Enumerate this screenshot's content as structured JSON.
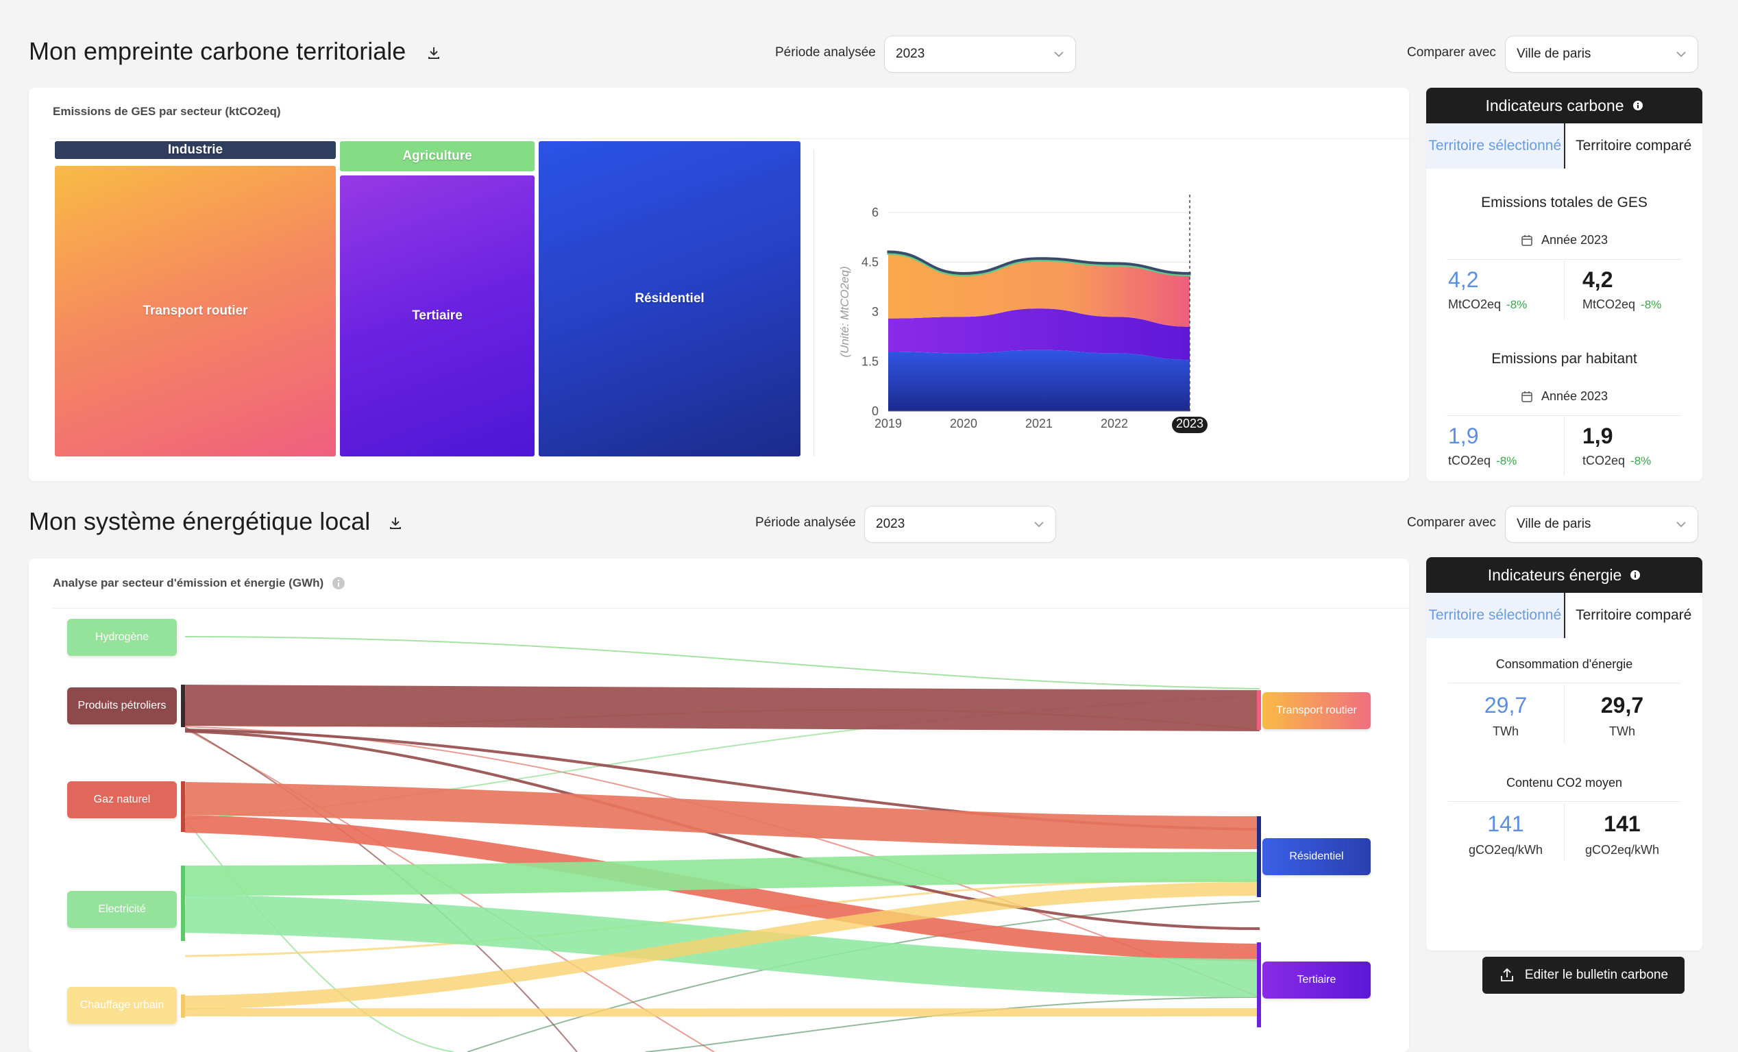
{
  "carbon_section": {
    "title": "Mon empreinte carbone territoriale",
    "period_label": "Période analysée",
    "period_value": "2023",
    "compare_label": "Comparer avec",
    "compare_value": "Ville de paris",
    "card_title": "Emissions de GES par secteur (ktCO2eq)",
    "treemap": [
      {
        "name": "Industrie",
        "label": "Industrie"
      },
      {
        "name": "Transport routier",
        "label": "Transport routier"
      },
      {
        "name": "Agriculture",
        "label": "Agriculture"
      },
      {
        "name": "Tertiaire",
        "label": "Tertiaire"
      },
      {
        "name": "Résidentiel",
        "label": "Résidentiel"
      }
    ]
  },
  "chart_data": {
    "type": "area",
    "title": "",
    "xlabel": "",
    "ylabel": "(Unité: MtCO2eq)",
    "x": [
      "2019",
      "2020",
      "2021",
      "2022",
      "2023"
    ],
    "highlight_x": "2023",
    "y_ticks": [
      "0",
      "1.5",
      "3",
      "4.5",
      "6"
    ],
    "ylim": [
      0,
      6
    ],
    "stacked": true,
    "series": [
      {
        "name": "Résidentiel",
        "color": "#2f4fe0",
        "values": [
          1.8,
          1.75,
          1.85,
          1.75,
          1.55
        ]
      },
      {
        "name": "Tertiaire",
        "color": "#8a2be8",
        "values": [
          1.0,
          1.1,
          1.25,
          1.1,
          1.0
        ]
      },
      {
        "name": "Transport routier",
        "color": "#f79a5a",
        "values": [
          1.95,
          1.25,
          1.45,
          1.55,
          1.55
        ]
      },
      {
        "name": "Agriculture",
        "color": "#63c98a",
        "values": [
          0.05,
          0.05,
          0.05,
          0.05,
          0.05
        ]
      },
      {
        "name": "Industrie",
        "color": "#3a4a6a",
        "values": [
          0.02,
          0.02,
          0.02,
          0.02,
          0.02
        ]
      }
    ]
  },
  "carbon_indicators": {
    "header": "Indicateurs carbone",
    "tab_selected": "Territoire sélectionné",
    "tab_compared": "Territoire comparé",
    "total": {
      "title": "Emissions totales de GES",
      "year": "Année 2023",
      "left_value": "4,2",
      "left_unit": "MtCO2eq",
      "left_pct": "-8%",
      "right_value": "4,2",
      "right_unit": "MtCO2eq",
      "right_pct": "-8%"
    },
    "per_capita": {
      "title": "Emissions par habitant",
      "year": "Année 2023",
      "left_value": "1,9",
      "left_unit": "tCO2eq",
      "left_pct": "-8%",
      "right_value": "1,9",
      "right_unit": "tCO2eq",
      "right_pct": "-8%"
    }
  },
  "energy_section": {
    "title": "Mon système énergétique local",
    "period_label": "Période analysée",
    "period_value": "2023",
    "compare_label": "Comparer avec",
    "compare_value": "Ville de paris",
    "card_title": "Analyse par secteur d'émission et énergie (GWh)",
    "sankey_sources": [
      "Hydrogène",
      "Produits pétroliers",
      "Gaz naturel",
      "Electricité",
      "Chauffage urbain"
    ],
    "sankey_targets": [
      "Transport routier",
      "Résidentiel",
      "Tertiaire"
    ]
  },
  "energy_indicators": {
    "header": "Indicateurs énergie",
    "tab_selected": "Territoire sélectionné",
    "tab_compared": "Territoire comparé",
    "consumption": {
      "title": "Consommation d'énergie",
      "left_value": "29,7",
      "left_unit": "TWh",
      "right_value": "29,7",
      "right_unit": "TWh"
    },
    "co2": {
      "title": "Contenu CO2 moyen",
      "left_value": "141",
      "left_unit": "gCO2eq/kWh",
      "right_value": "141",
      "right_unit": "gCO2eq/kWh"
    },
    "edit_button": "Editer le bulletin carbone"
  }
}
